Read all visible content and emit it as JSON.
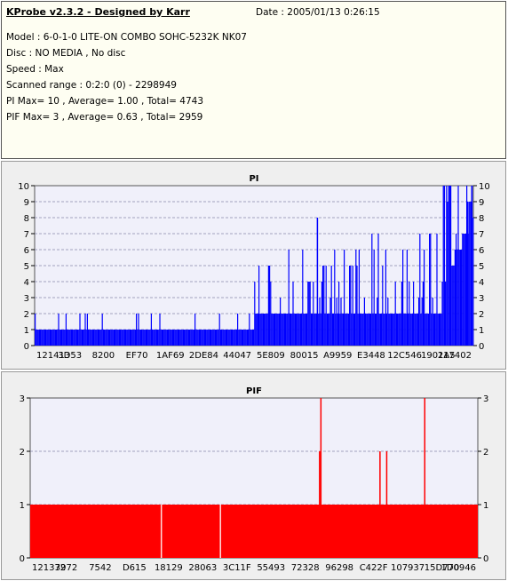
{
  "info": {
    "title": "KProbe v2.3.2 - Designed by Karr",
    "date": "Date : 2005/01/13 0:26:15",
    "lines": [
      "Model : 6-0-1-0 LITE-ON COMBO SOHC-5232K NK07",
      "Disc : NO MEDIA , No disc",
      "Speed : Max",
      "Scanned range : 0:2:0 (0) - 2298949",
      "PI Max= 10 , Average= 1.00 , Total= 4743",
      "PIF Max= 3 , Average= 0.63 , Total= 2959"
    ]
  },
  "colors": {
    "pi": "#0000ff",
    "pif": "#ff0000",
    "plot_bg": "#f0f0fa",
    "panel_bg": "#efefef"
  },
  "chart_data": [
    {
      "type": "bar",
      "title": "PI",
      "ylim": [
        0,
        10
      ],
      "yticks": [
        0,
        1,
        2,
        3,
        4,
        5,
        6,
        7,
        8,
        9,
        10
      ],
      "x_tick_labels": [
        "121413",
        "3D53",
        "8200",
        "EF70",
        "1AF69",
        "2DE84",
        "44047",
        "5E809",
        "80015",
        "A9959",
        "E3448",
        "12C546",
        "1901A5",
        "217402"
      ],
      "grid": true,
      "segments": [
        {
          "from": 0.0,
          "to": 0.5,
          "base": 1,
          "spike_prob": 0.1,
          "spike_levels": [
            2
          ]
        },
        {
          "from": 0.5,
          "to": 0.72,
          "base": 2,
          "spike_prob": 0.3,
          "spike_levels": [
            3,
            4,
            5,
            6
          ]
        },
        {
          "from": 0.72,
          "to": 0.93,
          "base": 2,
          "spike_prob": 0.35,
          "spike_levels": [
            3,
            4,
            5,
            6,
            7
          ]
        },
        {
          "from": 0.93,
          "to": 1.0,
          "base": 4,
          "spike_prob": 0.7,
          "spike_levels": [
            6,
            7,
            8,
            9,
            10
          ]
        }
      ],
      "spikes": [
        {
          "x": 0.643,
          "y": 8
        },
        {
          "x": 0.995,
          "y": 10
        },
        {
          "x": 0.985,
          "y": 9
        }
      ]
    },
    {
      "type": "bar",
      "title": "PIF",
      "ylim": [
        0,
        3
      ],
      "yticks": [
        0,
        1,
        2,
        3
      ],
      "x_tick_labels": [
        "121372",
        "3972",
        "7542",
        "D615",
        "18129",
        "28063",
        "3C11F",
        "55493",
        "72328",
        "96298",
        "C422F",
        "107937",
        "15D770",
        "1D0946"
      ],
      "grid": true,
      "base": 1,
      "gaps": [
        0.293,
        0.425
      ],
      "spikes": [
        {
          "x": 0.648,
          "y": 3
        },
        {
          "x": 0.645,
          "y": 2
        },
        {
          "x": 0.78,
          "y": 2
        },
        {
          "x": 0.795,
          "y": 2
        },
        {
          "x": 0.88,
          "y": 3
        }
      ]
    }
  ]
}
